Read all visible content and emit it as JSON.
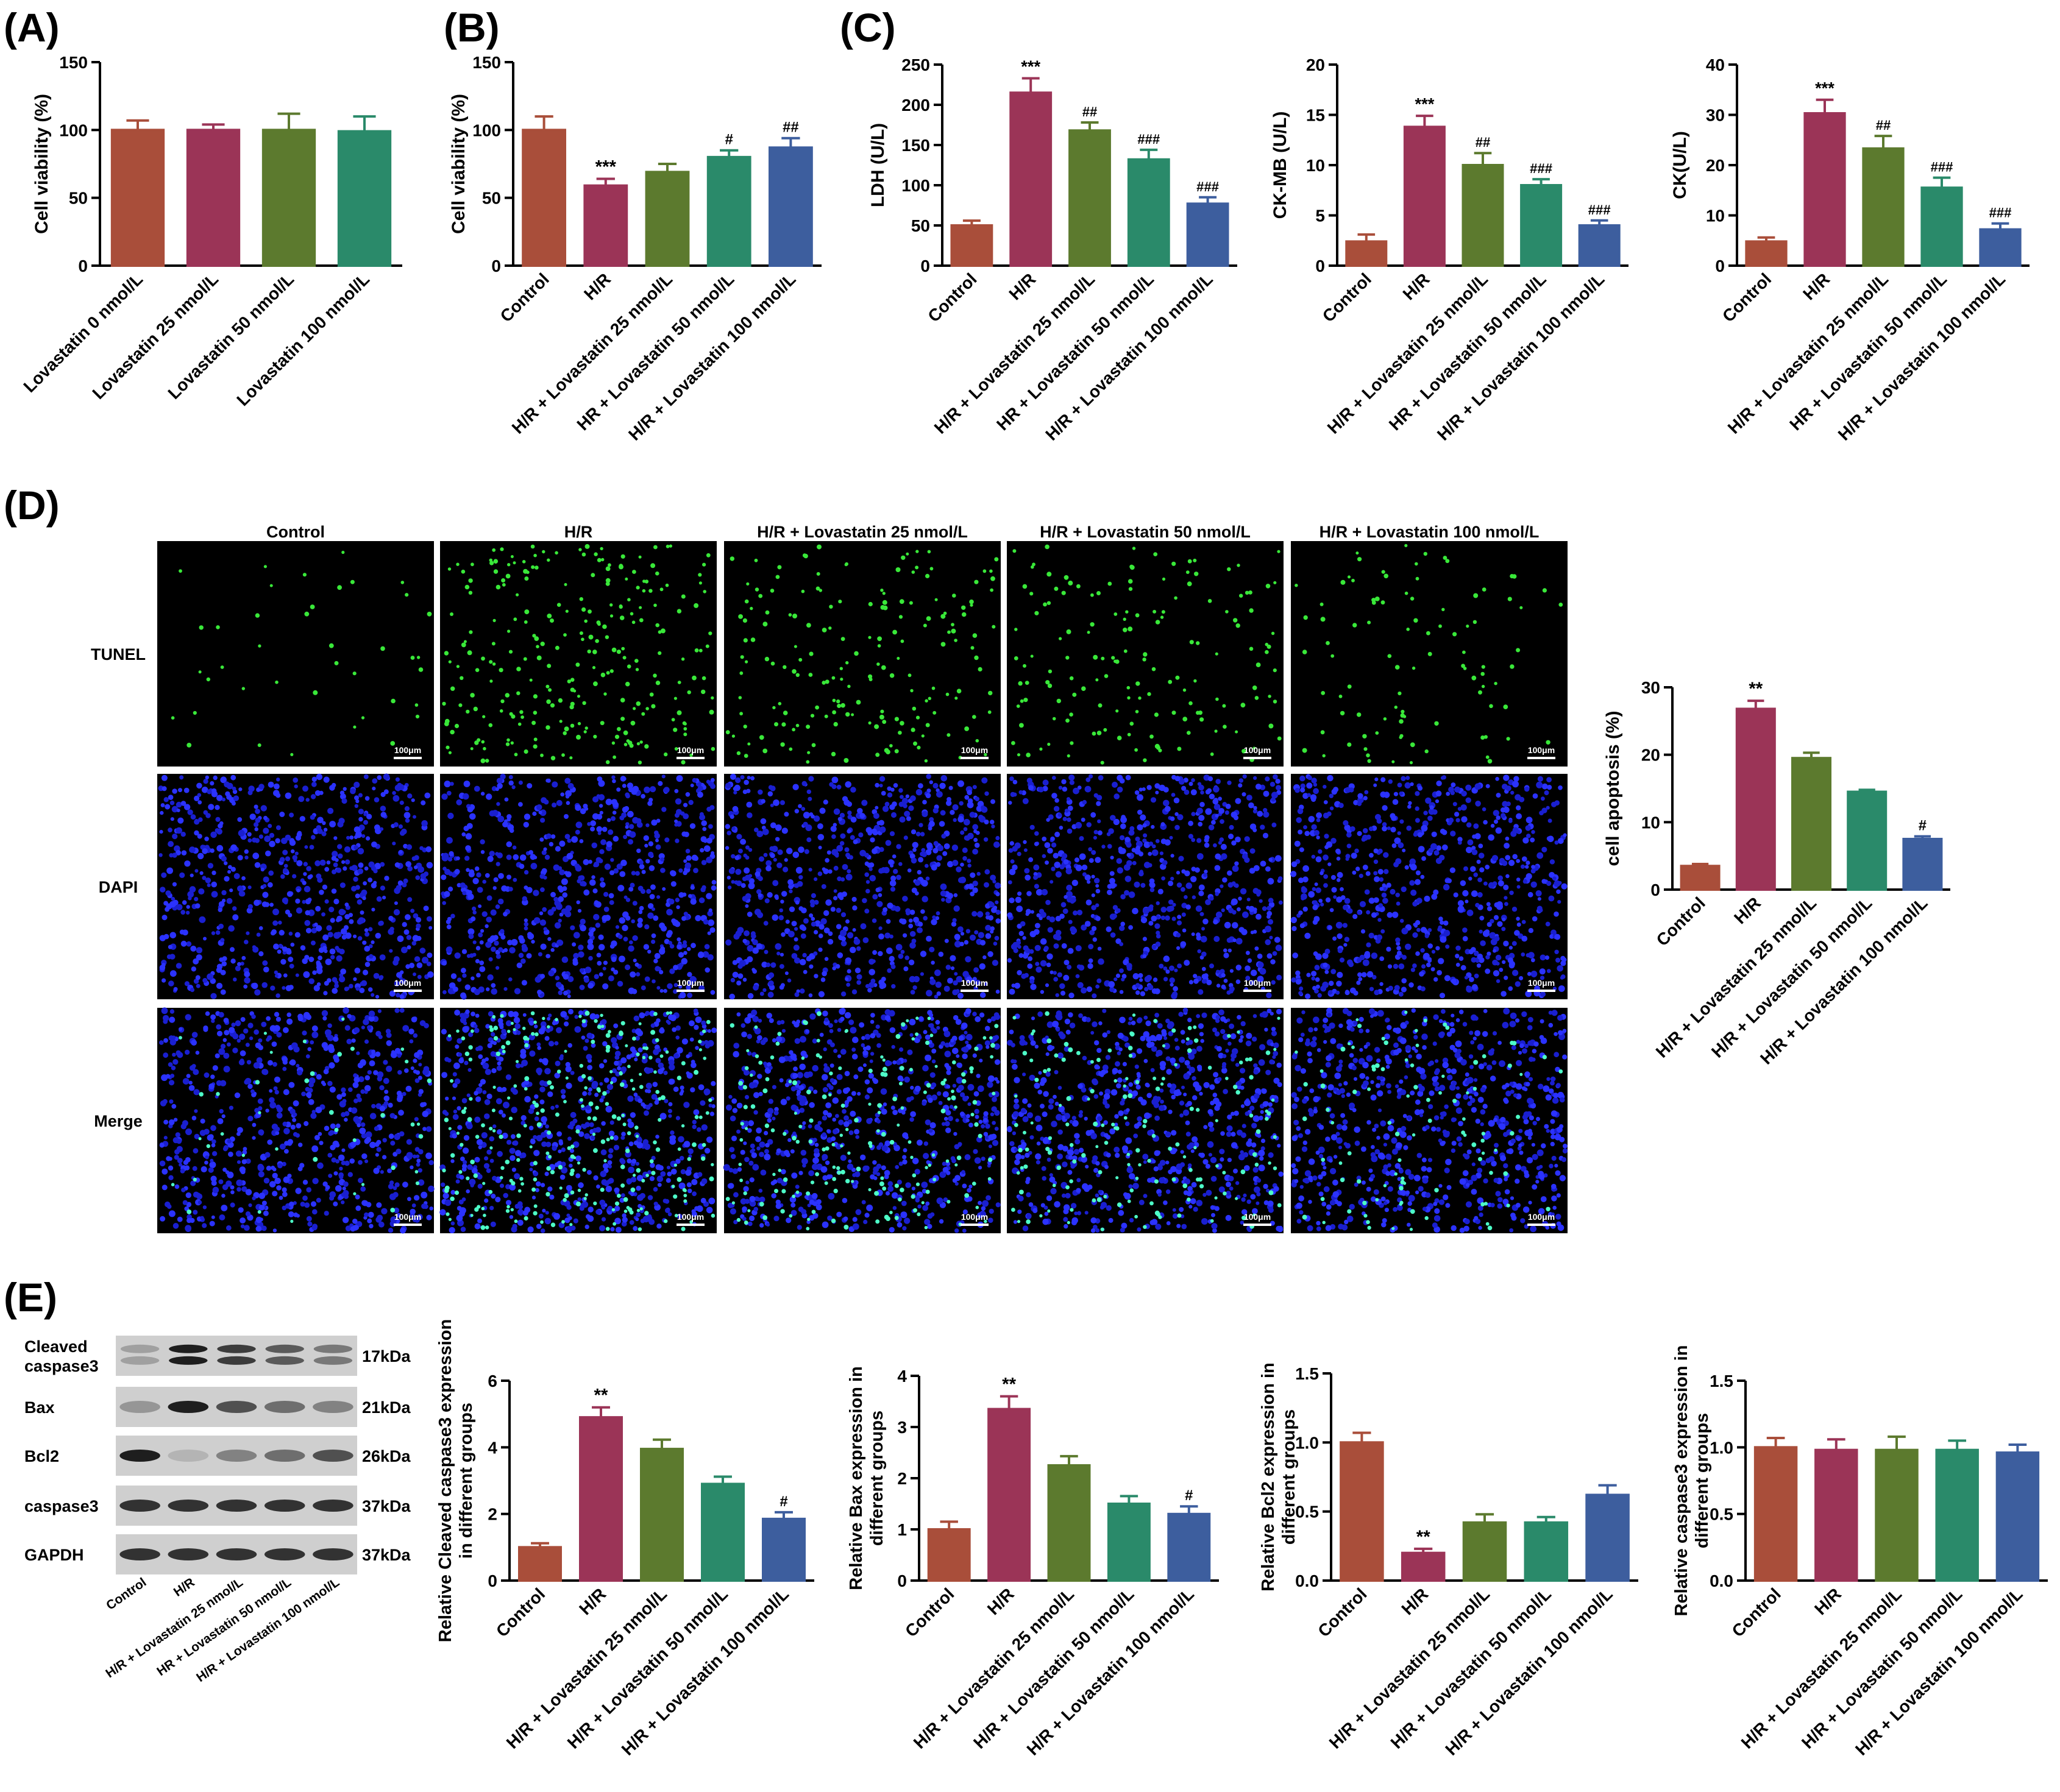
{
  "panel_labels": {
    "A": "(A)",
    "B": "(B)",
    "C": "(C)",
    "D": "(D)",
    "E": "(E)"
  },
  "colors": [
    "#a94e3a",
    "#9b3457",
    "#5c7a2e",
    "#2a8a6a",
    "#3d5e9e"
  ],
  "chart_data": [
    {
      "id": "A",
      "type": "bar",
      "categories": [
        "Lovastatin 0 nmol/L",
        "Lovastatin 25 nmol/L",
        "Lovastatin 50 nmol/L",
        "Lovastatin 100 nmol/L"
      ],
      "values": [
        100,
        100,
        100,
        99
      ],
      "errors": [
        7,
        4,
        12,
        11
      ],
      "annotations": [
        "",
        "",
        "",
        ""
      ],
      "ylabel": "Cell viability (%)",
      "ylim": [
        0,
        150
      ],
      "yticks": [
        0,
        50,
        100,
        150
      ],
      "ytick_labels": [
        "0",
        "50",
        "100",
        "150"
      ],
      "colors": [
        "#a94e3a",
        "#9b3457",
        "#5c7a2e",
        "#2a8a6a"
      ]
    },
    {
      "id": "B",
      "type": "bar",
      "categories": [
        "Control",
        "H/R",
        "H/R + Lovastatin 25 nmol/L",
        "HR + Lovastatin 50 nmol/L",
        "H/R + Lovastatin 100 nmol/L"
      ],
      "values": [
        100,
        59,
        69,
        80,
        87
      ],
      "errors": [
        10,
        5,
        6,
        5,
        7
      ],
      "annotations": [
        "",
        "***",
        "",
        "#",
        "##"
      ],
      "ylabel": "Cell viability (%)",
      "ylim": [
        0,
        150
      ],
      "yticks": [
        0,
        50,
        100,
        150
      ],
      "ytick_labels": [
        "0",
        "50",
        "100",
        "150"
      ],
      "colors": [
        "#a94e3a",
        "#9b3457",
        "#5c7a2e",
        "#2a8a6a",
        "#3d5e9e"
      ]
    },
    {
      "id": "C1",
      "type": "bar",
      "categories": [
        "Control",
        "H/R",
        "H/R + Lovastatin 25 nmol/L",
        "HR + Lovastatin 50 nmol/L",
        "H/R + Lovastatin 100 nmol/L"
      ],
      "values": [
        50,
        215,
        168,
        132,
        77
      ],
      "errors": [
        6,
        18,
        10,
        12,
        8
      ],
      "annotations": [
        "",
        "***",
        "##",
        "###",
        "###"
      ],
      "ylabel": "LDH (U/L)",
      "ylim": [
        0,
        250
      ],
      "yticks": [
        0,
        50,
        100,
        150,
        200,
        250
      ],
      "ytick_labels": [
        "0",
        "50",
        "100",
        "150",
        "200",
        "250"
      ],
      "colors": [
        "#a94e3a",
        "#9b3457",
        "#5c7a2e",
        "#2a8a6a",
        "#3d5e9e"
      ]
    },
    {
      "id": "C2",
      "type": "bar",
      "categories": [
        "Control",
        "H/R",
        "H/R + Lovastatin 25 nmol/L",
        "HR + Lovastatin 50 nmol/L",
        "H/R + Lovastatin 100 nmol/L"
      ],
      "values": [
        2.4,
        13.8,
        10.0,
        8.0,
        4.0
      ],
      "errors": [
        0.7,
        1.1,
        1.2,
        0.6,
        0.5
      ],
      "annotations": [
        "",
        "***",
        "##",
        "###",
        "###"
      ],
      "ylabel": "CK-MB (U/L)",
      "ylim": [
        0,
        20
      ],
      "yticks": [
        0,
        5,
        10,
        15,
        20
      ],
      "ytick_labels": [
        "0",
        "5",
        "10",
        "15",
        "20"
      ],
      "colors": [
        "#a94e3a",
        "#9b3457",
        "#5c7a2e",
        "#2a8a6a",
        "#3d5e9e"
      ]
    },
    {
      "id": "C3",
      "type": "bar",
      "categories": [
        "Control",
        "H/R",
        "H/R + Lovastatin 25 nmol/L",
        "HR + Lovastatin 50 nmol/L",
        "H/R + Lovastatin 100 nmol/L"
      ],
      "values": [
        4.8,
        30.3,
        23.3,
        15.5,
        7.2
      ],
      "errors": [
        0.8,
        2.7,
        2.5,
        2.0,
        1.2
      ],
      "annotations": [
        "",
        "***",
        "##",
        "###",
        "###"
      ],
      "ylabel": "CK(U/L)",
      "ylim": [
        0,
        40
      ],
      "yticks": [
        0,
        10,
        20,
        30,
        40
      ],
      "ytick_labels": [
        "0",
        "10",
        "20",
        "30",
        "40"
      ],
      "colors": [
        "#a94e3a",
        "#9b3457",
        "#5c7a2e",
        "#2a8a6a",
        "#3d5e9e"
      ]
    },
    {
      "id": "D",
      "type": "bar",
      "categories": [
        "Control",
        "H/R",
        "H/R + Lovastatin 25 nmol/L",
        "H/R + Lovastatin 50 nmol/L",
        "H/R + Lovastatin 100 nmol/L"
      ],
      "values": [
        3.5,
        26.8,
        19.5,
        14.5,
        7.5
      ],
      "errors": [
        0.3,
        1.2,
        0.8,
        0.3,
        0.4
      ],
      "annotations": [
        "",
        "**",
        "",
        "",
        "#"
      ],
      "ylabel": "cell apoptosis (%)",
      "ylim": [
        0,
        30
      ],
      "yticks": [
        0,
        10,
        20,
        30
      ],
      "ytick_labels": [
        "0",
        "10",
        "20",
        "30"
      ],
      "colors": [
        "#a94e3a",
        "#9b3457",
        "#5c7a2e",
        "#2a8a6a",
        "#3d5e9e"
      ]
    },
    {
      "id": "E1",
      "type": "bar",
      "categories": [
        "Control",
        "H/R",
        "H/R + Lovastatin 25 nmol/L",
        "H/R + Lovastatin 50 nmol/L",
        "H/R + Lovastatin 100 nmol/L"
      ],
      "values": [
        1.0,
        4.9,
        3.95,
        2.9,
        1.85
      ],
      "errors": [
        0.12,
        0.3,
        0.28,
        0.22,
        0.2
      ],
      "annotations": [
        "",
        "**",
        "",
        "",
        "#"
      ],
      "ylabel": [
        "Relative Cleaved caspase3 expression",
        "in different groups"
      ],
      "ylim": [
        0,
        6
      ],
      "yticks": [
        0,
        2,
        4,
        6
      ],
      "ytick_labels": [
        "0",
        "2",
        "4",
        "6"
      ],
      "colors": [
        "#a94e3a",
        "#9b3457",
        "#5c7a2e",
        "#2a8a6a",
        "#3d5e9e"
      ]
    },
    {
      "id": "E2",
      "type": "bar",
      "categories": [
        "Control",
        "H/R",
        "H/R + Lovastatin 25 nmol/L",
        "H/R + Lovastatin 50 nmol/L",
        "H/R + Lovastatin 100 nmol/L"
      ],
      "values": [
        1.0,
        3.35,
        2.25,
        1.5,
        1.3
      ],
      "errors": [
        0.15,
        0.25,
        0.18,
        0.15,
        0.15
      ],
      "annotations": [
        "",
        "**",
        "",
        "",
        "#"
      ],
      "ylabel": [
        "Relative Bax expression in",
        "different groups"
      ],
      "ylim": [
        0,
        4
      ],
      "yticks": [
        0,
        1,
        2,
        3,
        4
      ],
      "ytick_labels": [
        "0",
        "1",
        "2",
        "3",
        "4"
      ],
      "colors": [
        "#a94e3a",
        "#9b3457",
        "#5c7a2e",
        "#2a8a6a",
        "#3d5e9e"
      ]
    },
    {
      "id": "E3",
      "type": "bar",
      "categories": [
        "Control",
        "H/R",
        "H/R + Lovastatin 25 nmol/L",
        "H/R + Lovastatin 50 nmol/L",
        "H/R + Lovastatin 100 nmol/L"
      ],
      "values": [
        1.0,
        0.2,
        0.42,
        0.42,
        0.62
      ],
      "errors": [
        0.07,
        0.03,
        0.06,
        0.04,
        0.07
      ],
      "annotations": [
        "",
        "**",
        "",
        "",
        ""
      ],
      "ylabel": [
        "Relative Bcl2 expression in",
        "different groups"
      ],
      "ylim": [
        0,
        1.5
      ],
      "yticks": [
        0,
        0.5,
        1.0,
        1.5
      ],
      "ytick_labels": [
        "0.0",
        "0.5",
        "1.0",
        "1.5"
      ],
      "colors": [
        "#a94e3a",
        "#9b3457",
        "#5c7a2e",
        "#2a8a6a",
        "#3d5e9e"
      ]
    },
    {
      "id": "E4",
      "type": "bar",
      "categories": [
        "Control",
        "H/R",
        "H/R + Lovastatin 25 nmol/L",
        "H/R + Lovastatin 50 nmol/L",
        "H/R + Lovastatin 100 nmol/L"
      ],
      "values": [
        1.0,
        0.98,
        0.98,
        0.98,
        0.96
      ],
      "errors": [
        0.07,
        0.08,
        0.1,
        0.07,
        0.06
      ],
      "annotations": [
        "",
        "",
        "",
        "",
        ""
      ],
      "ylabel": [
        "Relative caspase3 expression in",
        "different groups"
      ],
      "ylim": [
        0,
        1.5
      ],
      "yticks": [
        0,
        0.5,
        1.0,
        1.5
      ],
      "ytick_labels": [
        "0.0",
        "0.5",
        "1.0",
        "1.5"
      ],
      "colors": [
        "#a94e3a",
        "#9b3457",
        "#5c7a2e",
        "#2a8a6a",
        "#3d5e9e"
      ]
    }
  ],
  "micrographs": {
    "column_titles": [
      "Control",
      "H/R",
      "H/R + Lovastatin 25 nmol/L",
      "H/R + Lovastatin 50 nmol/L",
      "H/R + Lovastatin 100 nmol/L"
    ],
    "row_labels": [
      "TUNEL",
      "DAPI",
      "Merge"
    ],
    "scale_bar": "100μm",
    "tunel_positive_density": [
      0.08,
      1.0,
      0.65,
      0.55,
      0.3
    ]
  },
  "western_blot": {
    "bands": [
      {
        "name": [
          "Cleaved",
          "caspase3"
        ],
        "size": "17kDa",
        "intensity": [
          0.35,
          1.0,
          0.85,
          0.7,
          0.55
        ]
      },
      {
        "name": [
          "Bax"
        ],
        "size": "21kDa",
        "intensity": [
          0.4,
          1.0,
          0.75,
          0.6,
          0.5
        ]
      },
      {
        "name": [
          "Bcl2"
        ],
        "size": "26kDa",
        "intensity": [
          1.0,
          0.25,
          0.5,
          0.6,
          0.75
        ]
      },
      {
        "name": [
          "caspase3"
        ],
        "size": "37kDa",
        "intensity": [
          0.9,
          0.9,
          0.9,
          0.9,
          0.9
        ]
      },
      {
        "name": [
          "GAPDH"
        ],
        "size": "37kDa",
        "intensity": [
          0.9,
          0.9,
          0.9,
          0.9,
          0.9
        ]
      }
    ],
    "lane_labels": [
      "Control",
      "H/R",
      "H/R + Lovastatin 25 nmol/L",
      "HR + Lovastatin 50 nmol/L",
      "H/R + Lovastatin 100 nmol/L"
    ]
  }
}
